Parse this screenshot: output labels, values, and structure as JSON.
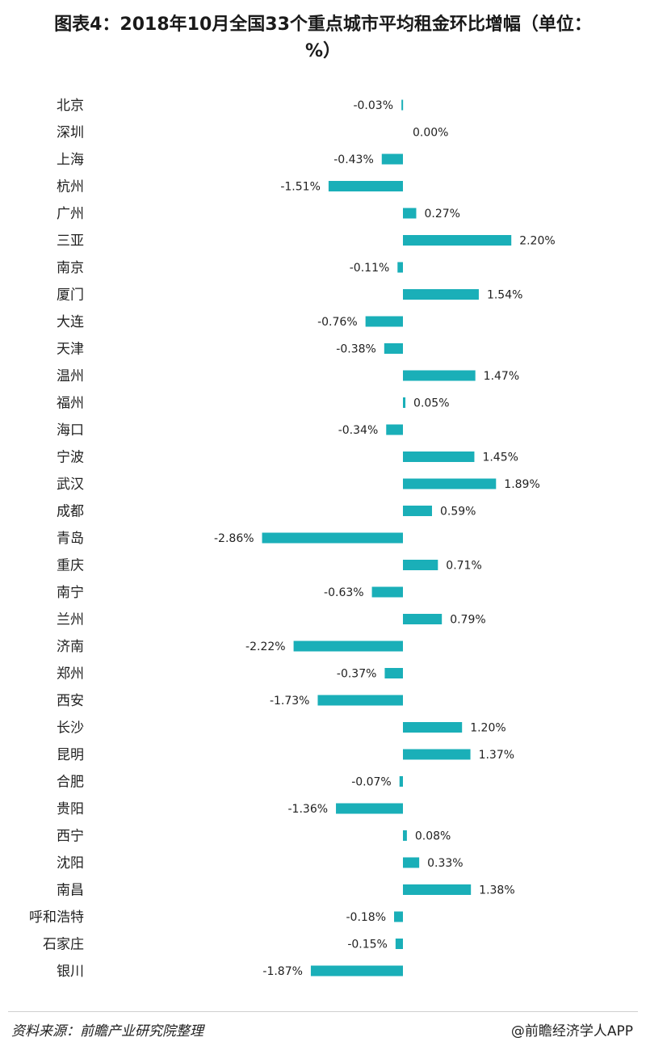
{
  "chart_data": {
    "type": "bar",
    "orientation": "horizontal",
    "title": "图表4：2018年10月全国33个重点城市平均租金环比增幅（单位：%）",
    "categories": [
      "北京",
      "深圳",
      "上海",
      "杭州",
      "广州",
      "三亚",
      "南京",
      "厦门",
      "大连",
      "天津",
      "温州",
      "福州",
      "海口",
      "宁波",
      "武汉",
      "成都",
      "青岛",
      "重庆",
      "南宁",
      "兰州",
      "济南",
      "郑州",
      "西安",
      "长沙",
      "昆明",
      "合肥",
      "贵阳",
      "西宁",
      "沈阳",
      "南昌",
      "呼和浩特",
      "石家庄",
      "银川"
    ],
    "values": [
      -0.03,
      0.0,
      -0.43,
      -1.51,
      0.27,
      2.2,
      -0.11,
      1.54,
      -0.76,
      -0.38,
      1.47,
      0.05,
      -0.34,
      1.45,
      1.89,
      0.59,
      -2.86,
      0.71,
      -0.63,
      0.79,
      -2.22,
      -0.37,
      -1.73,
      1.2,
      1.37,
      -0.07,
      -1.36,
      0.08,
      0.33,
      1.38,
      -0.18,
      -0.15,
      -1.87
    ],
    "value_labels": [
      "-0.03%",
      "0.00%",
      "-0.43%",
      "-1.51%",
      "0.27%",
      "2.20%",
      "-0.11%",
      "1.54%",
      "-0.76%",
      "-0.38%",
      "1.47%",
      "0.05%",
      "-0.34%",
      "1.45%",
      "1.89%",
      "0.59%",
      "-2.86%",
      "0.71%",
      "-0.63%",
      "0.79%",
      "-2.22%",
      "-0.37%",
      "-1.73%",
      "1.20%",
      "1.37%",
      "-0.07%",
      "-1.36%",
      "0.08%",
      "0.33%",
      "1.38%",
      "-0.18%",
      "-0.15%",
      "-1.87%"
    ],
    "bar_color": "#1aafb8",
    "xlim": [
      -2.86,
      2.2
    ],
    "grid": false,
    "legend": "none"
  },
  "footer": {
    "source": "资料来源：前瞻产业研究院整理",
    "credit": "@前瞻经济学人APP"
  }
}
